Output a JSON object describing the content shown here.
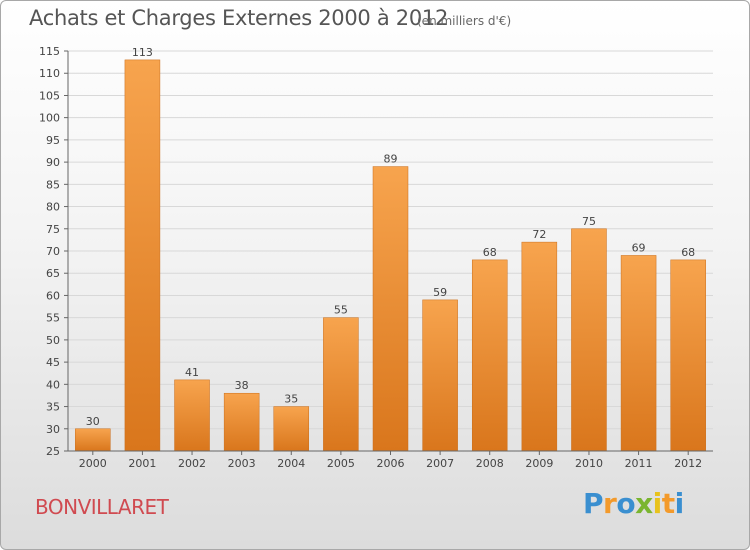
{
  "header": {
    "title": "Achats et Charges Externes 2000 à 2012",
    "subtitle": "(en milliers d'€)"
  },
  "footer": {
    "town": "BONVILLARET",
    "logo": "Proxiti"
  },
  "colors": {
    "bar_light": "#f7a44e",
    "bar_dark": "#d9761c",
    "grid": "#d8d8d8",
    "axis": "#666666",
    "town": "#d04a50",
    "logo_letters": [
      "#3a8fd0",
      "#f39a2b",
      "#3a8fd0",
      "#7ab530",
      "#e8c21c",
      "#f39a2b",
      "#3a8fd0"
    ]
  },
  "chart_data": {
    "type": "bar",
    "title": "Achats et Charges Externes 2000 à 2012",
    "subtitle": "(en milliers d'€)",
    "categories": [
      "2000",
      "2001",
      "2002",
      "2003",
      "2004",
      "2005",
      "2006",
      "2007",
      "2008",
      "2009",
      "2010",
      "2011",
      "2012"
    ],
    "values": [
      30,
      113,
      41,
      38,
      35,
      55,
      89,
      59,
      68,
      72,
      75,
      69,
      68
    ],
    "ylim": [
      25,
      115
    ],
    "yticks": [
      25,
      30,
      35,
      40,
      45,
      50,
      55,
      60,
      65,
      70,
      75,
      80,
      85,
      90,
      95,
      100,
      105,
      110,
      115
    ],
    "grid": true,
    "data_labels": true
  }
}
